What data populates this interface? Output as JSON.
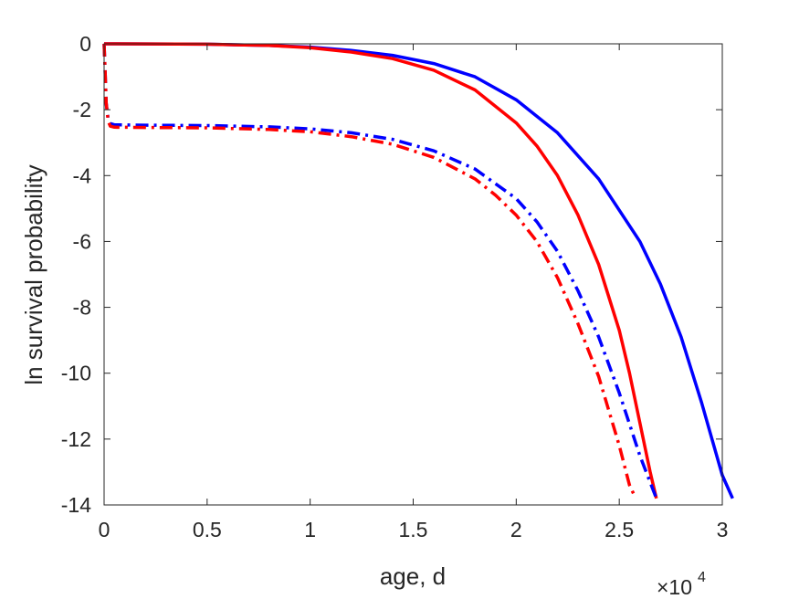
{
  "chart_data": {
    "type": "line",
    "title": "",
    "xlabel": "age, d",
    "ylabel": "ln survival probability",
    "x_exponent_label": {
      "base": "×10",
      "power": "4"
    },
    "xlim": [
      0,
      3
    ],
    "ylim": [
      -14,
      0
    ],
    "x_ticks": [
      "0",
      "0.5",
      "1",
      "1.5",
      "2",
      "2.5",
      "3"
    ],
    "y_ticks": [
      "0",
      "-2",
      "-4",
      "-6",
      "-8",
      "-10",
      "-12",
      "-14"
    ],
    "grid": false,
    "box": true,
    "colors": {
      "blue": "#0000ff",
      "red": "#ff0000",
      "axis": "#262626"
    },
    "series": [
      {
        "color": "#0000ff",
        "style": "solid",
        "points": [
          [
            0,
            0
          ],
          [
            0.5,
            -0.01
          ],
          [
            0.8,
            -0.05
          ],
          [
            1.0,
            -0.1
          ],
          [
            1.2,
            -0.2
          ],
          [
            1.4,
            -0.35
          ],
          [
            1.6,
            -0.6
          ],
          [
            1.8,
            -1.0
          ],
          [
            2.0,
            -1.7
          ],
          [
            2.2,
            -2.7
          ],
          [
            2.4,
            -4.1
          ],
          [
            2.6,
            -6.0
          ],
          [
            2.7,
            -7.3
          ],
          [
            2.8,
            -8.9
          ],
          [
            2.9,
            -10.9
          ],
          [
            2.95,
            -12.0
          ],
          [
            3.0,
            -13.1
          ],
          [
            3.05,
            -13.8
          ]
        ]
      },
      {
        "color": "#ff0000",
        "style": "solid",
        "points": [
          [
            0,
            0
          ],
          [
            0.5,
            -0.01
          ],
          [
            0.8,
            -0.05
          ],
          [
            1.0,
            -0.12
          ],
          [
            1.2,
            -0.25
          ],
          [
            1.4,
            -0.45
          ],
          [
            1.6,
            -0.8
          ],
          [
            1.8,
            -1.4
          ],
          [
            2.0,
            -2.4
          ],
          [
            2.1,
            -3.1
          ],
          [
            2.2,
            -4.0
          ],
          [
            2.3,
            -5.2
          ],
          [
            2.4,
            -6.7
          ],
          [
            2.5,
            -8.7
          ],
          [
            2.55,
            -10.0
          ],
          [
            2.6,
            -11.5
          ],
          [
            2.65,
            -13.0
          ],
          [
            2.68,
            -13.8
          ]
        ]
      },
      {
        "color": "#0000ff",
        "style": "dashdot",
        "points": [
          [
            0,
            0
          ],
          [
            0.005,
            -0.8
          ],
          [
            0.01,
            -1.8
          ],
          [
            0.02,
            -2.3
          ],
          [
            0.03,
            -2.42
          ],
          [
            0.05,
            -2.46
          ],
          [
            0.2,
            -2.47
          ],
          [
            0.5,
            -2.48
          ],
          [
            0.8,
            -2.52
          ],
          [
            1.0,
            -2.58
          ],
          [
            1.2,
            -2.7
          ],
          [
            1.4,
            -2.9
          ],
          [
            1.6,
            -3.25
          ],
          [
            1.8,
            -3.8
          ],
          [
            2.0,
            -4.7
          ],
          [
            2.1,
            -5.4
          ],
          [
            2.2,
            -6.3
          ],
          [
            2.3,
            -7.5
          ],
          [
            2.4,
            -8.9
          ],
          [
            2.5,
            -10.6
          ],
          [
            2.6,
            -12.5
          ],
          [
            2.68,
            -13.8
          ]
        ]
      },
      {
        "color": "#ff0000",
        "style": "dashdot",
        "points": [
          [
            0,
            0
          ],
          [
            0.005,
            -0.8
          ],
          [
            0.01,
            -1.8
          ],
          [
            0.02,
            -2.35
          ],
          [
            0.03,
            -2.5
          ],
          [
            0.05,
            -2.53
          ],
          [
            0.2,
            -2.54
          ],
          [
            0.5,
            -2.55
          ],
          [
            0.8,
            -2.6
          ],
          [
            1.0,
            -2.67
          ],
          [
            1.2,
            -2.82
          ],
          [
            1.4,
            -3.05
          ],
          [
            1.6,
            -3.45
          ],
          [
            1.8,
            -4.1
          ],
          [
            1.9,
            -4.6
          ],
          [
            2.0,
            -5.2
          ],
          [
            2.1,
            -6.0
          ],
          [
            2.2,
            -7.1
          ],
          [
            2.3,
            -8.5
          ],
          [
            2.4,
            -10.1
          ],
          [
            2.5,
            -12.2
          ],
          [
            2.55,
            -13.4
          ],
          [
            2.58,
            -13.8
          ]
        ]
      }
    ]
  }
}
